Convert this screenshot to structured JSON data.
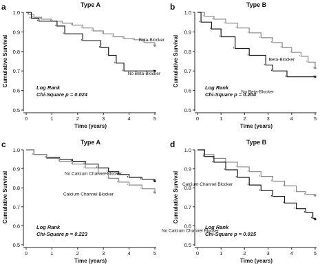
{
  "chart_data": [
    {
      "type": "line",
      "panel_label": "a",
      "title": "Type A",
      "xlabel": "Time (years)",
      "ylabel": "Cumulative Survival",
      "xlim": [
        0,
        5
      ],
      "ylim": [
        0.5,
        1.0
      ],
      "x_ticks": [
        "0",
        "1",
        "2",
        "3",
        "4",
        "5"
      ],
      "y_ticks": [
        "0.5",
        "0.6",
        "0.7",
        "0.8",
        "0.9",
        "1.0"
      ],
      "grid": false,
      "annotation_lines": [
        "Log Rank",
        "Chi-Square p = 0.024"
      ],
      "series": [
        {
          "name": "Beta-Blocker",
          "color": "#888888",
          "points": [
            [
              0,
              1.0
            ],
            [
              0.1,
              0.99
            ],
            [
              0.3,
              0.975
            ],
            [
              0.6,
              0.965
            ],
            [
              1.0,
              0.955
            ],
            [
              1.4,
              0.945
            ],
            [
              1.8,
              0.935
            ],
            [
              2.2,
              0.92
            ],
            [
              2.6,
              0.905
            ],
            [
              3.0,
              0.89
            ],
            [
              3.4,
              0.875
            ],
            [
              3.8,
              0.865
            ],
            [
              4.2,
              0.86
            ],
            [
              4.6,
              0.845
            ],
            [
              5.0,
              0.83
            ]
          ]
        },
        {
          "name": "No Beta-Blocker",
          "color": "#1a1a1a",
          "points": [
            [
              0,
              1.0
            ],
            [
              0.2,
              0.97
            ],
            [
              0.5,
              0.955
            ],
            [
              1.2,
              0.93
            ],
            [
              1.5,
              0.89
            ],
            [
              2.2,
              0.855
            ],
            [
              2.9,
              0.82
            ],
            [
              3.2,
              0.78
            ],
            [
              3.5,
              0.74
            ],
            [
              3.8,
              0.7
            ],
            [
              5.0,
              0.7
            ]
          ]
        }
      ]
    },
    {
      "type": "line",
      "panel_label": "b",
      "title": "Type B",
      "xlabel": "Time (years)",
      "ylabel": "Cumulative Survival",
      "xlim": [
        0,
        5
      ],
      "ylim": [
        0.5,
        1.0
      ],
      "x_ticks": [
        "0",
        "1",
        "2",
        "3",
        "4",
        "5"
      ],
      "y_ticks": [
        "0.5",
        "0.6",
        "0.7",
        "0.8",
        "0.9",
        "1.0"
      ],
      "grid": false,
      "annotation_lines": [
        "Log Rank",
        "Chi-Square p = 0.204"
      ],
      "series": [
        {
          "name": "Beta-Blocker",
          "color": "#888888",
          "points": [
            [
              0,
              1.0
            ],
            [
              0.3,
              0.98
            ],
            [
              0.7,
              0.965
            ],
            [
              1.2,
              0.945
            ],
            [
              1.7,
              0.92
            ],
            [
              2.2,
              0.895
            ],
            [
              2.7,
              0.87
            ],
            [
              3.2,
              0.845
            ],
            [
              3.6,
              0.82
            ],
            [
              4.0,
              0.795
            ],
            [
              4.4,
              0.775
            ],
            [
              4.7,
              0.745
            ],
            [
              5.0,
              0.715
            ]
          ]
        },
        {
          "name": "No Beta-Blocker",
          "color": "#1a1a1a",
          "points": [
            [
              0,
              1.0
            ],
            [
              0.15,
              0.95
            ],
            [
              0.6,
              0.915
            ],
            [
              1.0,
              0.875
            ],
            [
              1.6,
              0.815
            ],
            [
              2.2,
              0.78
            ],
            [
              2.9,
              0.73
            ],
            [
              3.2,
              0.7
            ],
            [
              3.8,
              0.67
            ],
            [
              5.0,
              0.67
            ]
          ]
        }
      ]
    },
    {
      "type": "line",
      "panel_label": "c",
      "title": "Type A",
      "xlabel": "Time (years)",
      "ylabel": "Cumulative Survival",
      "xlim": [
        0,
        5
      ],
      "ylim": [
        0.5,
        1.0
      ],
      "x_ticks": [
        "0",
        "1",
        "2",
        "3",
        "4",
        "5"
      ],
      "y_ticks": [
        "0.5",
        "0.6",
        "0.7",
        "0.8",
        "0.9",
        "1.0"
      ],
      "grid": false,
      "annotation_lines": [
        "Log Rank",
        "Chi-Square p = 0.223"
      ],
      "series": [
        {
          "name": "No Calcium Channel Blocker",
          "color": "#1a1a1a",
          "points": [
            [
              0,
              1.0
            ],
            [
              0.3,
              0.975
            ],
            [
              0.8,
              0.96
            ],
            [
              1.3,
              0.95
            ],
            [
              1.8,
              0.94
            ],
            [
              2.3,
              0.925
            ],
            [
              2.8,
              0.905
            ],
            [
              3.2,
              0.885
            ],
            [
              3.6,
              0.87
            ],
            [
              4.0,
              0.855
            ],
            [
              4.5,
              0.845
            ],
            [
              5.0,
              0.835
            ]
          ]
        },
        {
          "name": "Calcium Channel Blocker",
          "color": "#888888",
          "points": [
            [
              0,
              1.0
            ],
            [
              0.3,
              0.975
            ],
            [
              0.8,
              0.955
            ],
            [
              1.3,
              0.94
            ],
            [
              1.8,
              0.925
            ],
            [
              2.3,
              0.905
            ],
            [
              2.8,
              0.875
            ],
            [
              3.2,
              0.85
            ],
            [
              3.6,
              0.83
            ],
            [
              4.0,
              0.815
            ],
            [
              4.5,
              0.795
            ],
            [
              5.0,
              0.775
            ]
          ]
        }
      ]
    },
    {
      "type": "line",
      "panel_label": "d",
      "title": "Type B",
      "xlabel": "Time (years)",
      "ylabel": "Cumulative Survival",
      "xlim": [
        0,
        5
      ],
      "ylim": [
        0.5,
        1.0
      ],
      "x_ticks": [
        "0",
        "1",
        "2",
        "3",
        "4",
        "5"
      ],
      "y_ticks": [
        "0.5",
        "0.6",
        "0.7",
        "0.8",
        "0.9",
        "1.0"
      ],
      "grid": false,
      "annotation_lines": [
        "Log Rank",
        "Chi-Square p = 0.015"
      ],
      "series": [
        {
          "name": "Calcium Channel Blocker",
          "color": "#888888",
          "points": [
            [
              0,
              1.0
            ],
            [
              0.3,
              0.975
            ],
            [
              0.7,
              0.955
            ],
            [
              1.2,
              0.935
            ],
            [
              1.7,
              0.91
            ],
            [
              2.2,
              0.885
            ],
            [
              2.7,
              0.86
            ],
            [
              3.2,
              0.835
            ],
            [
              3.7,
              0.81
            ],
            [
              4.2,
              0.78
            ],
            [
              4.6,
              0.765
            ],
            [
              5.0,
              0.76
            ]
          ]
        },
        {
          "name": "No Calcium Channel Blocker",
          "color": "#1a1a1a",
          "points": [
            [
              0,
              1.0
            ],
            [
              0.3,
              0.965
            ],
            [
              0.7,
              0.935
            ],
            [
              1.2,
              0.895
            ],
            [
              1.7,
              0.855
            ],
            [
              2.2,
              0.815
            ],
            [
              2.7,
              0.785
            ],
            [
              3.2,
              0.755
            ],
            [
              3.7,
              0.72
            ],
            [
              4.2,
              0.69
            ],
            [
              4.6,
              0.67
            ],
            [
              4.9,
              0.64
            ],
            [
              5.0,
              0.635
            ]
          ]
        }
      ]
    }
  ]
}
